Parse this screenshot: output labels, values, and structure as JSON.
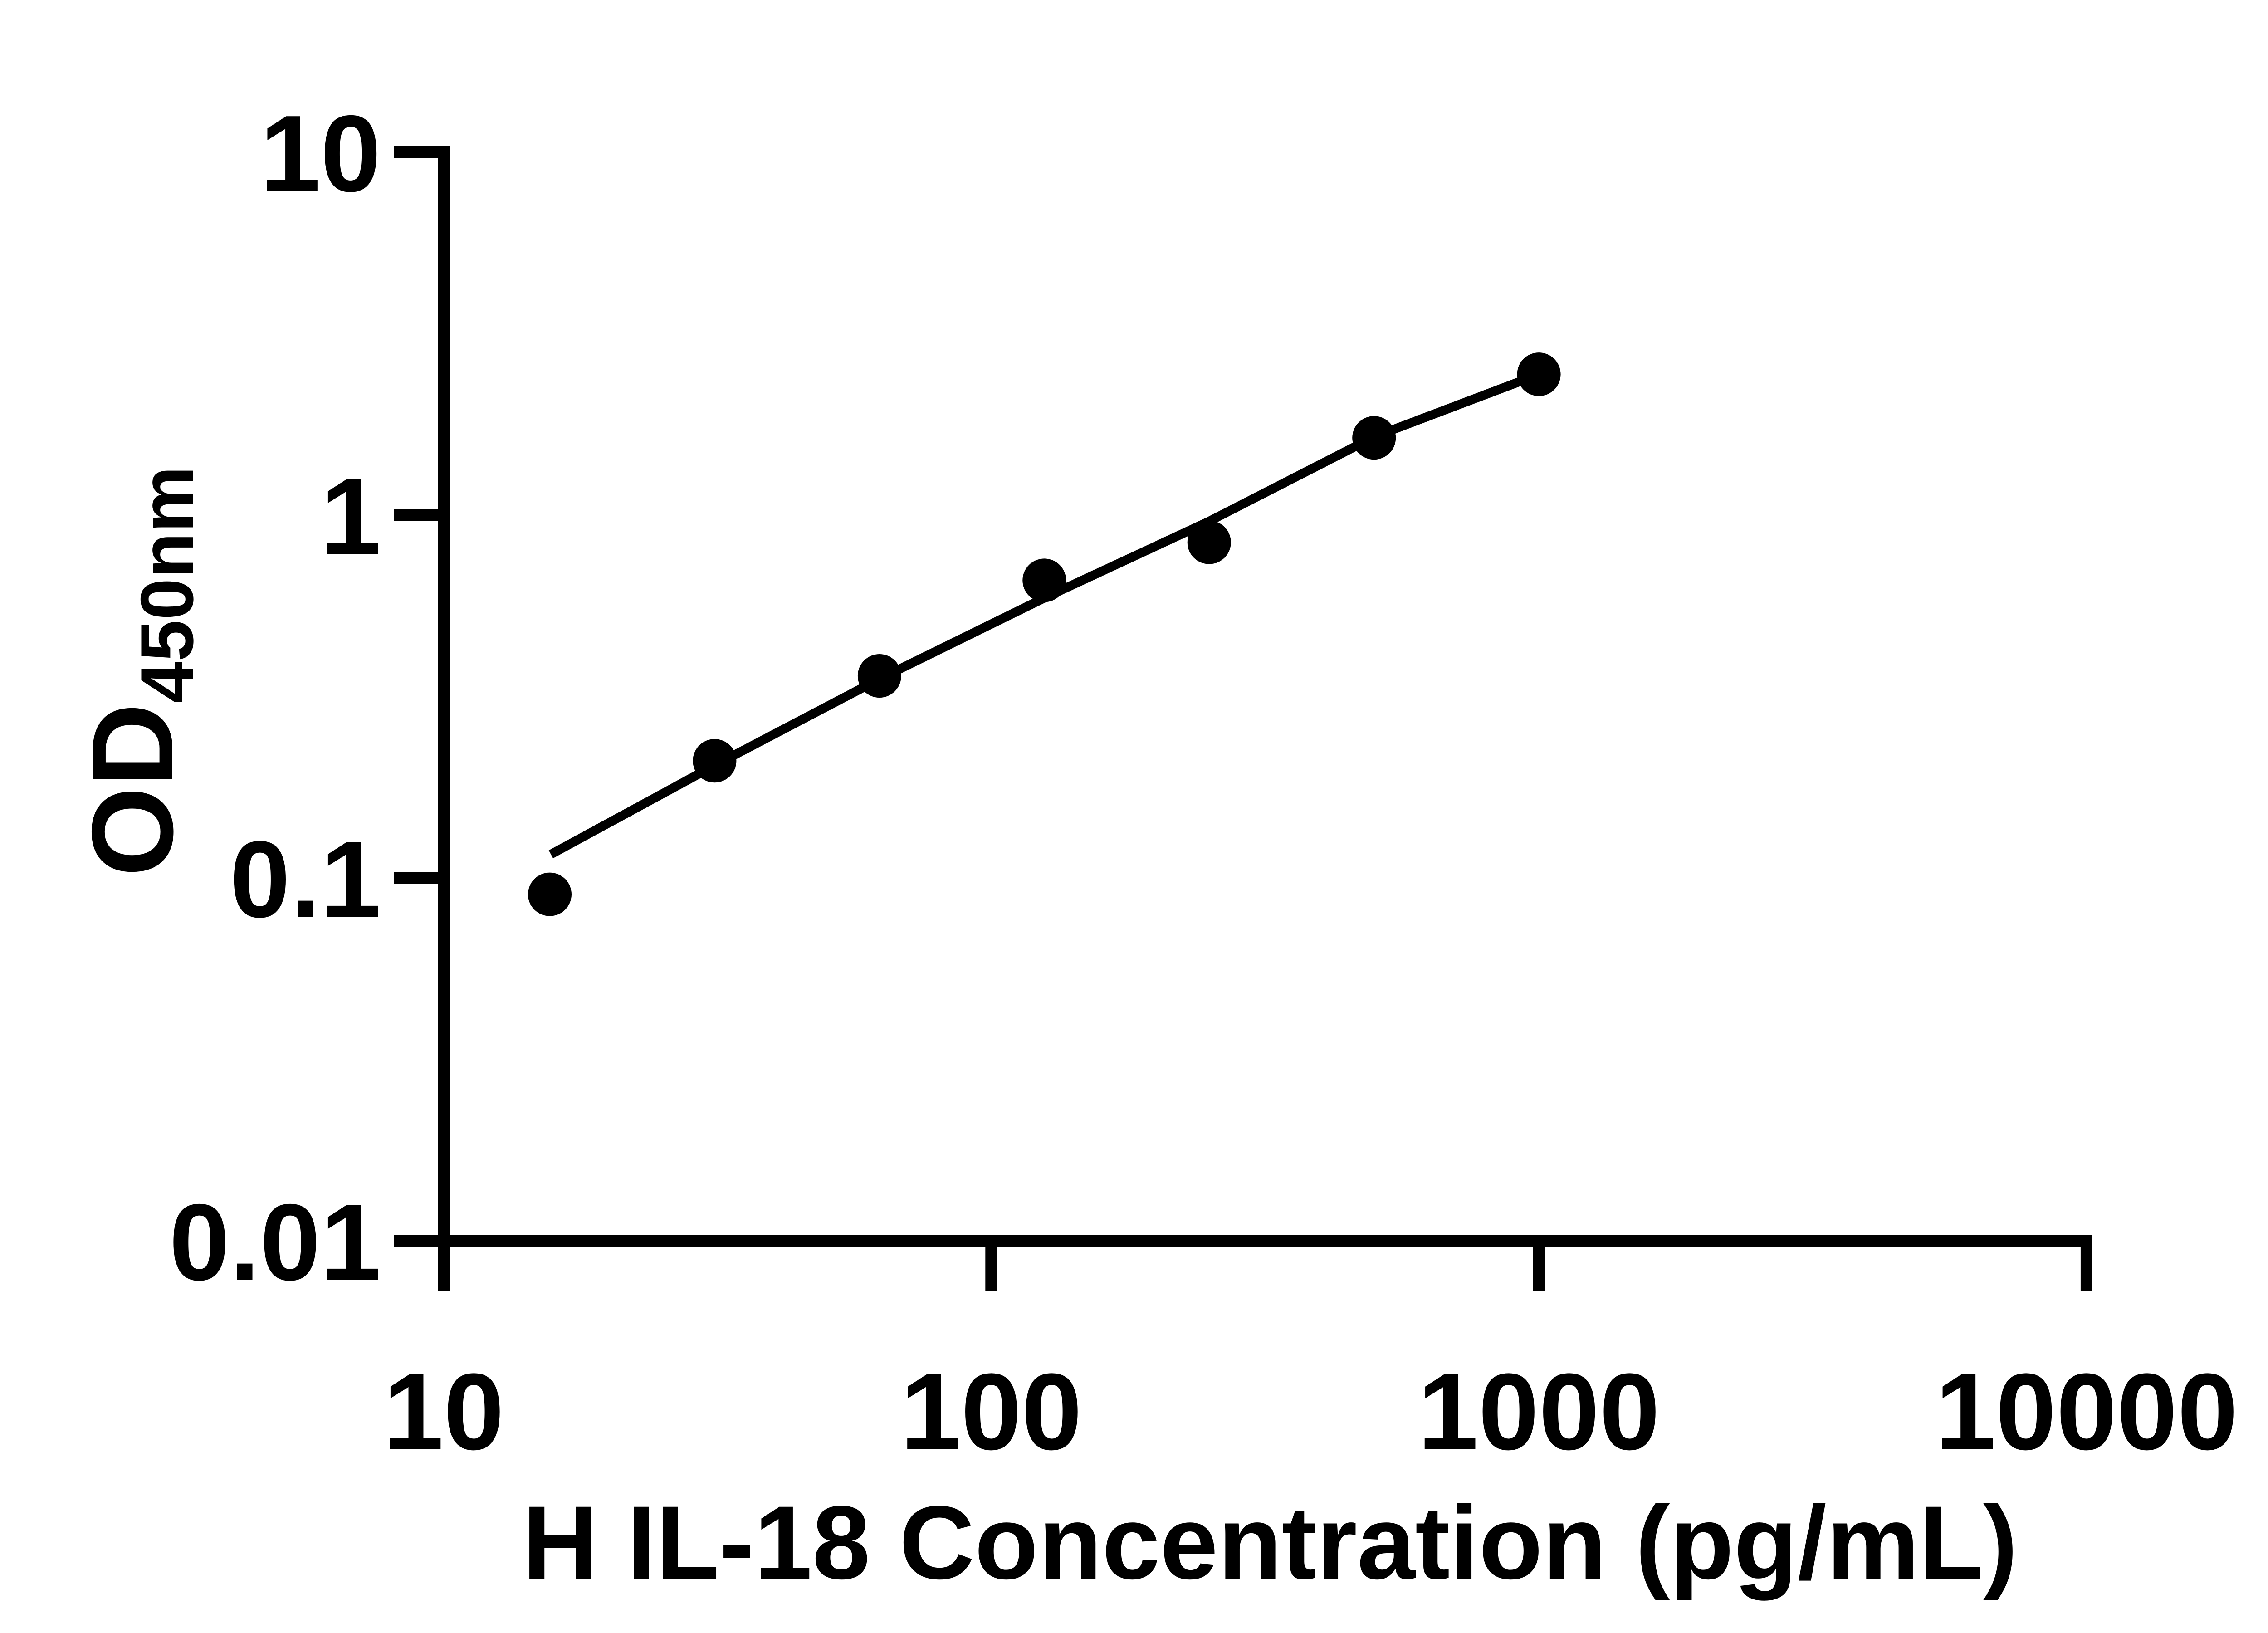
{
  "chart_data": {
    "type": "scatter",
    "title": "",
    "xlabel": "H IL-18 Concentration (pg/mL)",
    "ylabel_main": "OD",
    "ylabel_sub": "450nm",
    "x_scale": "log",
    "y_scale": "log",
    "xlim": [
      10,
      10000
    ],
    "ylim": [
      0.01,
      10
    ],
    "grid": "off",
    "legend": "none",
    "x_ticks": [
      {
        "value": 10,
        "label": "10"
      },
      {
        "value": 100,
        "label": "100"
      },
      {
        "value": 1000,
        "label": "1000"
      },
      {
        "value": 10000,
        "label": "10000"
      }
    ],
    "y_ticks": [
      {
        "value": 10,
        "label": "10"
      },
      {
        "value": 1,
        "label": "1"
      },
      {
        "value": 0.1,
        "label": "0.1"
      },
      {
        "value": 0.01,
        "label": "0.01"
      }
    ],
    "series": [
      {
        "name": "standard-points",
        "type": "scatter",
        "marker": "circle",
        "color": "#000000",
        "points": [
          {
            "x": 15.625,
            "y": 0.09
          },
          {
            "x": 31.25,
            "y": 0.21
          },
          {
            "x": 62.5,
            "y": 0.36
          },
          {
            "x": 125,
            "y": 0.66
          },
          {
            "x": 250,
            "y": 0.84
          },
          {
            "x": 500,
            "y": 1.63
          },
          {
            "x": 1000,
            "y": 2.44
          }
        ]
      },
      {
        "name": "fit-line",
        "type": "line",
        "color": "#000000",
        "points": [
          {
            "x": 15.7,
            "y": 0.116
          },
          {
            "x": 31.25,
            "y": 0.204
          },
          {
            "x": 62.5,
            "y": 0.353
          },
          {
            "x": 125,
            "y": 0.59
          },
          {
            "x": 250,
            "y": 0.96
          },
          {
            "x": 500,
            "y": 1.64
          },
          {
            "x": 1000,
            "y": 2.44
          }
        ]
      }
    ]
  },
  "colors": {
    "foreground": "#000000",
    "background": "#ffffff"
  }
}
